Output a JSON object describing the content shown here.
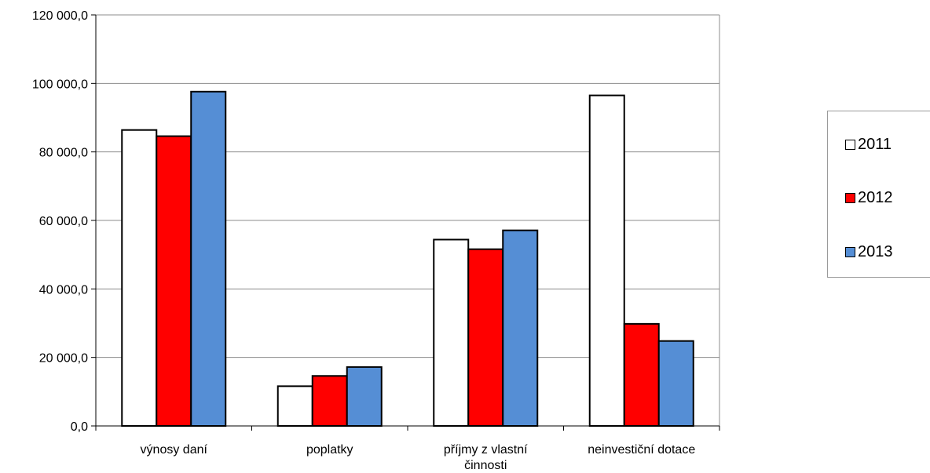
{
  "chart_data": {
    "type": "bar",
    "categories": [
      [
        "výnosy daní"
      ],
      [
        "poplatky"
      ],
      [
        "příjmy z vlastní",
        "činnosti"
      ],
      [
        "neinvestiční dotace"
      ]
    ],
    "series": [
      {
        "name": "2011",
        "color": "#ffffff",
        "values": [
          86400,
          11600,
          54400,
          96500
        ]
      },
      {
        "name": "2012",
        "color": "#ff0000",
        "values": [
          84600,
          14600,
          51600,
          29800
        ]
      },
      {
        "name": "2013",
        "color": "#558ed5",
        "values": [
          97600,
          17200,
          57100,
          24800
        ]
      }
    ],
    "ylim": [
      0,
      120000
    ],
    "yticks": [
      0,
      20000,
      40000,
      60000,
      80000,
      100000,
      120000
    ],
    "ytick_labels": [
      "0,0",
      "20 000,0",
      "40 000,0",
      "60 000,0",
      "80 000,0",
      "100 000,0",
      "120 000,0"
    ],
    "title": "",
    "xlabel": "",
    "ylabel": "",
    "grid": true,
    "legend_position": "right"
  }
}
